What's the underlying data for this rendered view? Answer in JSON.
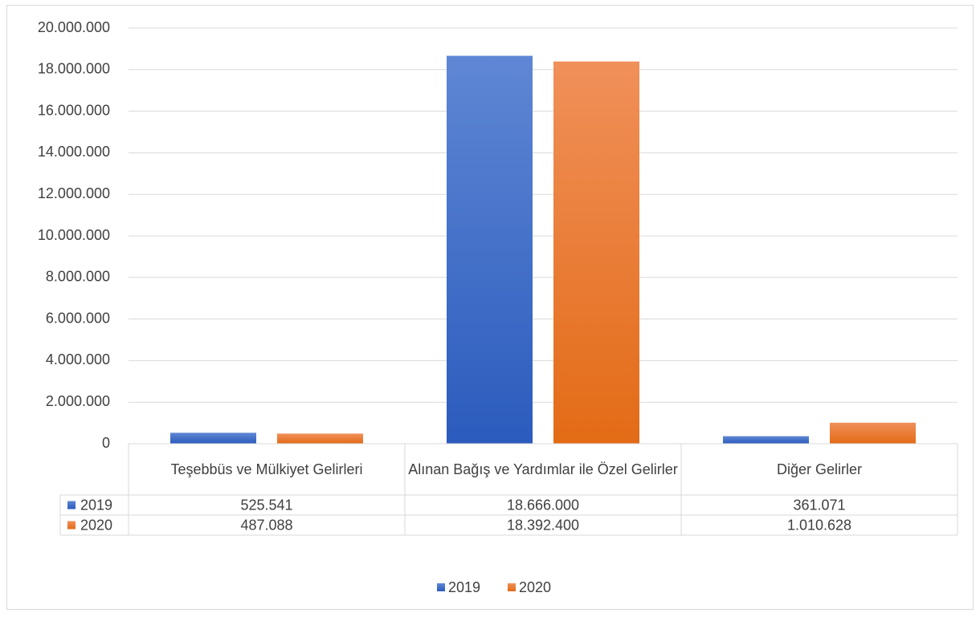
{
  "chart_data": {
    "type": "bar",
    "categories": [
      "Teşebbüs ve Mülkiyet Gelirleri",
      "Alınan Bağış ve Yardımlar ile Özel Gelirler",
      "Diğer Gelirler"
    ],
    "series": [
      {
        "name": "2019",
        "color": "#4472c4",
        "values": [
          525541,
          18666000,
          361071
        ],
        "value_labels": [
          "525.541",
          "18.666.000",
          "361.071"
        ]
      },
      {
        "name": "2020",
        "color": "#ed7d31",
        "values": [
          487088,
          18392400,
          1010628
        ],
        "value_labels": [
          "487.088",
          "18.392.400",
          "1.010.628"
        ]
      }
    ],
    "ylim": [
      0,
      20000000
    ],
    "yticks": [
      0,
      {
        "value": 2000000,
        "label": "2.000.000"
      },
      {
        "value": 4000000,
        "label": "4.000.000"
      },
      {
        "value": 6000000,
        "label": "6.000.000"
      },
      {
        "value": 8000000,
        "label": "8.000.000"
      },
      {
        "value": 10000000,
        "label": "10.000.000"
      },
      {
        "value": 12000000,
        "label": "12.000.000"
      },
      {
        "value": 14000000,
        "label": "14.000.000"
      },
      {
        "value": 16000000,
        "label": "16.000.000"
      },
      {
        "value": 18000000,
        "label": "18.000.000"
      },
      {
        "value": 20000000,
        "label": "20.000.000"
      }
    ],
    "grid": true,
    "legend": "bottom",
    "data_table": true
  }
}
